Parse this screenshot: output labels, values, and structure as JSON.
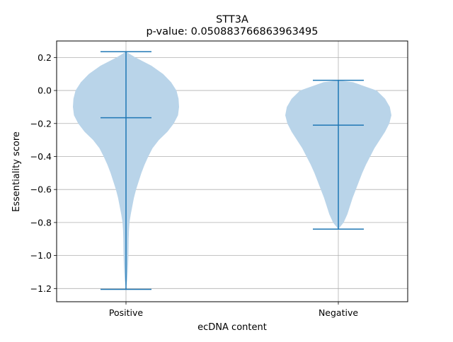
{
  "chart_data": {
    "type": "violin",
    "title": "STT3A",
    "subtitle": "p-value: 0.050883766863963495",
    "xlabel": "ecDNA content",
    "ylabel": "Essentiality score",
    "categories": [
      "Positive",
      "Negative"
    ],
    "ylim": [
      -1.28,
      0.3
    ],
    "yticks": [
      0.2,
      0.0,
      -0.2,
      -0.4,
      -0.6,
      -0.8,
      -1.0,
      -1.2
    ],
    "ytick_labels": [
      "0.2",
      "0.0",
      "−0.2",
      "−0.4",
      "−0.6",
      "−0.8",
      "−1.0",
      "−1.2"
    ],
    "grid": true,
    "fill_color": "#b9d4e9",
    "line_color": "#1f77b4",
    "series": [
      {
        "name": "Positive",
        "max": 0.235,
        "median": -0.165,
        "min": -1.205,
        "density_profile": [
          [
            0.235,
            0.0
          ],
          [
            0.2,
            0.18
          ],
          [
            0.15,
            0.48
          ],
          [
            0.1,
            0.7
          ],
          [
            0.05,
            0.85
          ],
          [
            0.0,
            0.95
          ],
          [
            -0.05,
            0.99
          ],
          [
            -0.1,
            1.0
          ],
          [
            -0.15,
            0.98
          ],
          [
            -0.2,
            0.9
          ],
          [
            -0.25,
            0.78
          ],
          [
            -0.3,
            0.62
          ],
          [
            -0.35,
            0.5
          ],
          [
            -0.4,
            0.42
          ],
          [
            -0.45,
            0.35
          ],
          [
            -0.5,
            0.29
          ],
          [
            -0.55,
            0.24
          ],
          [
            -0.6,
            0.19
          ],
          [
            -0.65,
            0.15
          ],
          [
            -0.7,
            0.12
          ],
          [
            -0.75,
            0.09
          ],
          [
            -0.8,
            0.065
          ],
          [
            -0.85,
            0.055
          ],
          [
            -0.9,
            0.05
          ],
          [
            -0.95,
            0.048
          ],
          [
            -1.0,
            0.045
          ],
          [
            -1.05,
            0.04
          ],
          [
            -1.1,
            0.033
          ],
          [
            -1.15,
            0.022
          ],
          [
            -1.205,
            0.0
          ]
        ]
      },
      {
        "name": "Negative",
        "max": 0.062,
        "median": -0.21,
        "min": -0.84,
        "density_profile": [
          [
            0.062,
            0.0
          ],
          [
            0.05,
            0.28
          ],
          [
            0.0,
            0.72
          ],
          [
            -0.05,
            0.88
          ],
          [
            -0.1,
            0.97
          ],
          [
            -0.15,
            1.0
          ],
          [
            -0.2,
            0.96
          ],
          [
            -0.25,
            0.88
          ],
          [
            -0.3,
            0.78
          ],
          [
            -0.35,
            0.68
          ],
          [
            -0.4,
            0.6
          ],
          [
            -0.45,
            0.52
          ],
          [
            -0.5,
            0.45
          ],
          [
            -0.55,
            0.39
          ],
          [
            -0.6,
            0.33
          ],
          [
            -0.65,
            0.27
          ],
          [
            -0.7,
            0.22
          ],
          [
            -0.75,
            0.17
          ],
          [
            -0.8,
            0.1
          ],
          [
            -0.84,
            0.0
          ]
        ]
      }
    ]
  }
}
